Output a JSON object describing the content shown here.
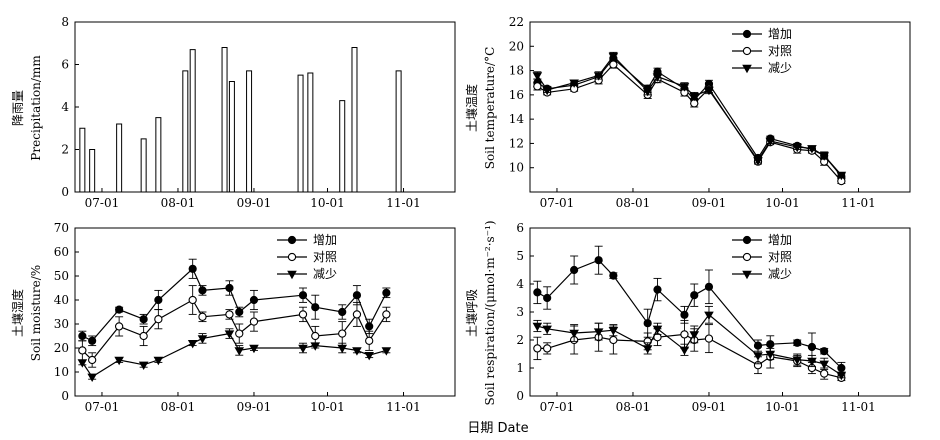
{
  "figure": {
    "shared_xlabel": "日期 Date"
  },
  "chart_data": [
    {
      "id": "precip",
      "type": "bar",
      "ylabel_cn": "降雨量",
      "ylabel_en": "Precipitation/mm",
      "ylim": [
        0,
        8
      ],
      "yticks": [
        0,
        2,
        4,
        6,
        8
      ],
      "xlim": [
        0,
        155
      ],
      "xticks": [
        {
          "x": 11,
          "label": "07-01"
        },
        {
          "x": 42,
          "label": "08-01"
        },
        {
          "x": 73,
          "label": "09-01"
        },
        {
          "x": 103,
          "label": "10-01"
        },
        {
          "x": 134,
          "label": "11-01"
        }
      ],
      "bars": [
        {
          "x": 3,
          "value": 3.0
        },
        {
          "x": 7,
          "value": 2.0
        },
        {
          "x": 18,
          "value": 3.2
        },
        {
          "x": 28,
          "value": 2.5
        },
        {
          "x": 34,
          "value": 3.5
        },
        {
          "x": 45,
          "value": 5.7
        },
        {
          "x": 48,
          "value": 6.7
        },
        {
          "x": 61,
          "value": 6.8
        },
        {
          "x": 64,
          "value": 5.2
        },
        {
          "x": 71,
          "value": 5.7
        },
        {
          "x": 92,
          "value": 5.5
        },
        {
          "x": 96,
          "value": 5.6
        },
        {
          "x": 109,
          "value": 4.3
        },
        {
          "x": 114,
          "value": 6.8
        },
        {
          "x": 132,
          "value": 5.7
        }
      ]
    },
    {
      "id": "temperature",
      "type": "line",
      "ylabel_cn": "土壤温度",
      "ylabel_en": "Soil temperature/°C",
      "ylim": [
        8,
        22
      ],
      "yticks": [
        10,
        12,
        14,
        16,
        18,
        20,
        22
      ],
      "xlim": [
        0,
        155
      ],
      "xticks": [
        {
          "x": 11,
          "label": "07-01"
        },
        {
          "x": 42,
          "label": "08-01"
        },
        {
          "x": 73,
          "label": "09-01"
        },
        {
          "x": 103,
          "label": "10-01"
        },
        {
          "x": 134,
          "label": "11-01"
        }
      ],
      "legend": {
        "position": "top-right"
      },
      "x": [
        3,
        7,
        18,
        28,
        34,
        48,
        52,
        63,
        67,
        73,
        93,
        98,
        109,
        115,
        120,
        127
      ],
      "series": [
        {
          "name": "增加",
          "marker": "filled-circle",
          "values": [
            17.0,
            16.5,
            16.8,
            17.5,
            19.0,
            16.5,
            17.9,
            16.5,
            15.6,
            16.9,
            10.8,
            12.4,
            11.8,
            11.5,
            11.0,
            9.3
          ],
          "errors": [
            0.3,
            0.2,
            0.2,
            0.3,
            0.3,
            0.3,
            0.3,
            0.3,
            0.3,
            0.3,
            0.2,
            0.2,
            0.2,
            0.2,
            0.3,
            0.2
          ]
        },
        {
          "name": "对照",
          "marker": "open-circle",
          "values": [
            16.7,
            16.2,
            16.5,
            17.2,
            18.5,
            16.0,
            17.3,
            16.2,
            15.3,
            16.5,
            10.5,
            12.1,
            11.5,
            11.4,
            10.5,
            8.9
          ],
          "errors": [
            0.3,
            0.2,
            0.2,
            0.3,
            0.3,
            0.3,
            0.3,
            0.3,
            0.3,
            0.3,
            0.2,
            0.2,
            0.3,
            0.2,
            0.3,
            0.2
          ]
        },
        {
          "name": "减少",
          "marker": "filled-triangle-down",
          "values": [
            17.6,
            16.4,
            17.0,
            17.6,
            19.2,
            16.3,
            17.5,
            16.7,
            15.9,
            16.4,
            10.6,
            12.2,
            11.7,
            11.6,
            11.0,
            9.4
          ],
          "errors": [
            0.3,
            0.2,
            0.2,
            0.3,
            0.3,
            0.3,
            0.3,
            0.3,
            0.3,
            0.3,
            0.2,
            0.2,
            0.2,
            0.2,
            0.3,
            0.2
          ]
        }
      ]
    },
    {
      "id": "moisture",
      "type": "line",
      "ylabel_cn": "土壤湿度",
      "ylabel_en": "Soil moisture/%",
      "ylim": [
        0,
        70
      ],
      "yticks": [
        0,
        10,
        20,
        30,
        40,
        50,
        60,
        70
      ],
      "xlim": [
        0,
        155
      ],
      "xticks": [
        {
          "x": 11,
          "label": "07-01"
        },
        {
          "x": 42,
          "label": "08-01"
        },
        {
          "x": 73,
          "label": "09-01"
        },
        {
          "x": 103,
          "label": "10-01"
        },
        {
          "x": 134,
          "label": "11-01"
        }
      ],
      "legend": {
        "position": "top-right"
      },
      "x": [
        3,
        7,
        18,
        28,
        34,
        48,
        52,
        63,
        67,
        73,
        93,
        98,
        109,
        115,
        120,
        127
      ],
      "series": [
        {
          "name": "增加",
          "marker": "filled-circle",
          "values": [
            25,
            23,
            36,
            32,
            40,
            53,
            44,
            45,
            35,
            40,
            42,
            37,
            35,
            42,
            29,
            43
          ],
          "errors": [
            2,
            2,
            1,
            2,
            4,
            4,
            2,
            3,
            2,
            4,
            3,
            5,
            3,
            4,
            3,
            2
          ]
        },
        {
          "name": "对照",
          "marker": "open-circle",
          "values": [
            19,
            15,
            29,
            25,
            32,
            40,
            33,
            34,
            26,
            31,
            34,
            25,
            26,
            34,
            23,
            34
          ],
          "errors": [
            4,
            3,
            4,
            4,
            4,
            6,
            2,
            2,
            4,
            4,
            3,
            4,
            5,
            5,
            4,
            3
          ]
        },
        {
          "name": "减少",
          "marker": "filled-triangle-down",
          "values": [
            14,
            8,
            15,
            13,
            15,
            22,
            24,
            26,
            19,
            20,
            20,
            21,
            20,
            19,
            17,
            19
          ],
          "errors": [
            1,
            1,
            1,
            1,
            1,
            1,
            2,
            2,
            2,
            1,
            2,
            1,
            2,
            1,
            1,
            1
          ]
        }
      ]
    },
    {
      "id": "respiration",
      "type": "line",
      "ylabel_cn": "土壤呼吸",
      "ylabel_en": "Soil respiration/(μmol·m⁻²·s⁻¹)",
      "ylim": [
        0,
        6
      ],
      "yticks": [
        0,
        1,
        2,
        3,
        4,
        5,
        6
      ],
      "xlim": [
        0,
        155
      ],
      "xticks": [
        {
          "x": 11,
          "label": "07-01"
        },
        {
          "x": 42,
          "label": "08-01"
        },
        {
          "x": 73,
          "label": "09-01"
        },
        {
          "x": 103,
          "label": "10-01"
        },
        {
          "x": 134,
          "label": "11-01"
        }
      ],
      "legend": {
        "position": "top-right"
      },
      "x": [
        3,
        7,
        18,
        28,
        34,
        48,
        52,
        63,
        67,
        73,
        93,
        98,
        109,
        115,
        120,
        127
      ],
      "series": [
        {
          "name": "增加",
          "marker": "filled-circle",
          "values": [
            3.7,
            3.5,
            4.5,
            4.85,
            4.3,
            2.6,
            3.8,
            2.9,
            3.6,
            3.9,
            1.8,
            1.85,
            1.9,
            1.75,
            1.6,
            1.0
          ],
          "errors": [
            0.4,
            0.4,
            0.5,
            0.5,
            0.1,
            0.5,
            0.4,
            0.3,
            0.4,
            0.6,
            0.2,
            0.3,
            0.1,
            0.5,
            0.1,
            0.2
          ]
        },
        {
          "name": "对照",
          "marker": "open-circle",
          "values": [
            1.7,
            1.7,
            2.0,
            2.1,
            2.0,
            1.95,
            2.1,
            2.2,
            2.0,
            2.05,
            1.1,
            1.4,
            1.25,
            1.0,
            0.8,
            0.65
          ],
          "errors": [
            0.4,
            0.2,
            0.5,
            0.5,
            0.5,
            0.3,
            0.3,
            0.5,
            0.4,
            0.5,
            0.3,
            0.4,
            0.2,
            0.2,
            0.2,
            0.1
          ]
        },
        {
          "name": "减少",
          "marker": "filled-triangle-down",
          "values": [
            2.5,
            2.4,
            2.25,
            2.3,
            2.35,
            1.7,
            2.4,
            1.65,
            2.2,
            2.9,
            1.45,
            1.5,
            1.3,
            1.25,
            1.15,
            0.75
          ],
          "errors": [
            0.2,
            0.2,
            0.3,
            0.3,
            0.2,
            0.2,
            0.2,
            0.2,
            0.3,
            0.3,
            0.3,
            0.2,
            0.2,
            0.2,
            0.2,
            0.1
          ]
        }
      ]
    }
  ]
}
